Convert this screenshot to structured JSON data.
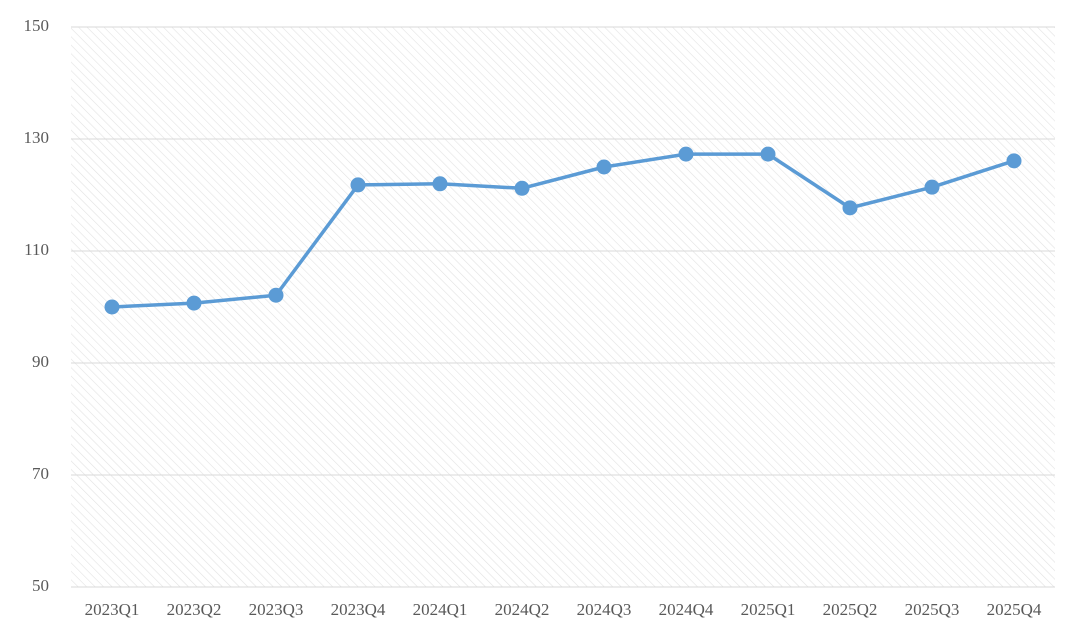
{
  "chart_data": {
    "type": "line",
    "categories": [
      "2023Q1",
      "2023Q2",
      "2023Q3",
      "2023Q4",
      "2024Q1",
      "2024Q2",
      "2024Q3",
      "2024Q4",
      "2025Q1",
      "2025Q2",
      "2025Q3",
      "2025Q4"
    ],
    "series": [
      {
        "color": "#5b9bd5",
        "values": [
          100,
          100.7,
          102.1,
          121.8,
          122.0,
          121.2,
          125.0,
          127.3,
          127.3,
          117.7,
          121.4,
          126.1
        ]
      }
    ],
    "ylim": [
      50,
      150
    ],
    "yticks": [
      50,
      70,
      90,
      110,
      130,
      150
    ],
    "grid": true
  }
}
